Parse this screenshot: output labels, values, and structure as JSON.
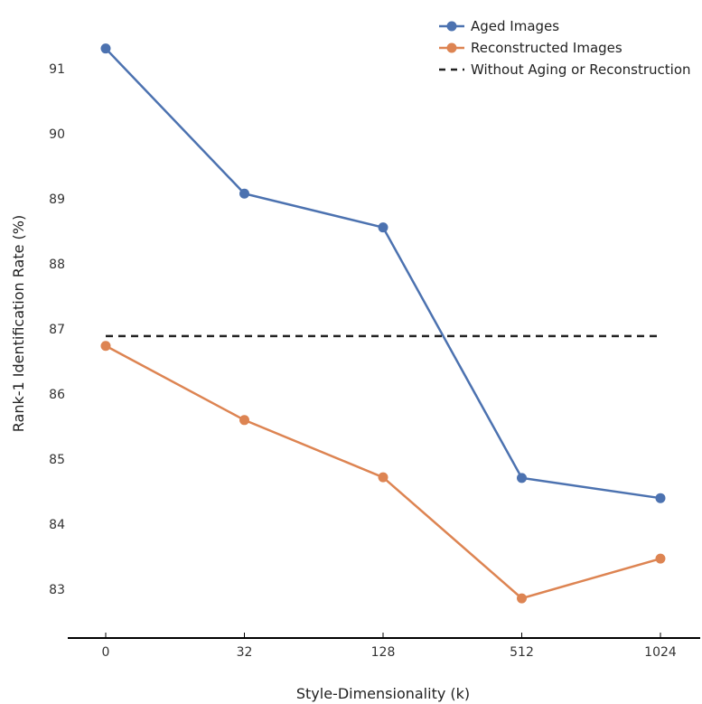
{
  "chart_data": {
    "type": "line",
    "title": "",
    "xlabel": "Style-Dimensionality (k)",
    "ylabel": "Rank-1 Identification Rate (%)",
    "x_scale": "categorical",
    "categories": [
      "0",
      "32",
      "128",
      "512",
      "1024"
    ],
    "ylim": [
      82.24,
      92.06
    ],
    "yticks": [
      83,
      84,
      85,
      86,
      87,
      88,
      89,
      90,
      91
    ],
    "grid": false,
    "legend_position": "top-right",
    "series": [
      {
        "name": "Aged Images",
        "color": "#4c72b0",
        "style": "solid-markers",
        "values": [
          91.31,
          89.08,
          88.56,
          84.71,
          84.4
        ]
      },
      {
        "name": "Reconstructed Images",
        "color": "#dd8452",
        "style": "solid-markers",
        "values": [
          86.74,
          85.6,
          84.72,
          82.86,
          83.47
        ]
      },
      {
        "name": "Without Aging or Reconstruction",
        "color": "#222222",
        "style": "dashed",
        "values": [
          86.89,
          86.89,
          86.89,
          86.89,
          86.89
        ]
      }
    ]
  }
}
